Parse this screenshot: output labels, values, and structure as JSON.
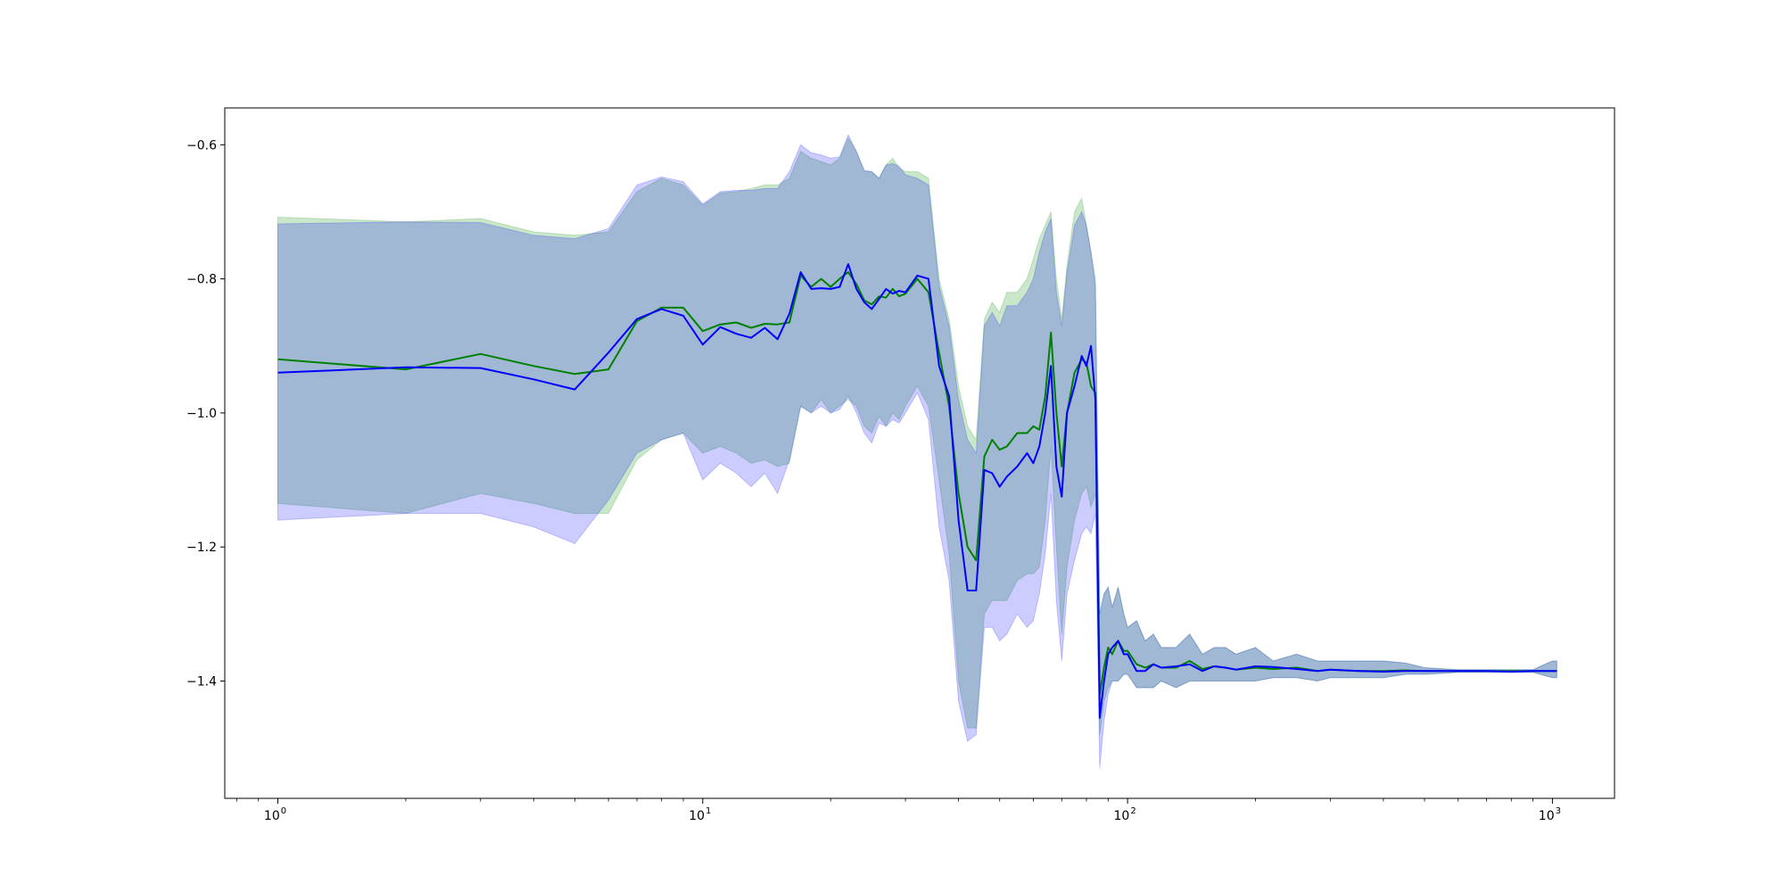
{
  "chart_data": {
    "type": "line",
    "title": "",
    "xlabel": "",
    "ylabel": "",
    "x_scale": "log",
    "xlim": [
      0.75,
      1400
    ],
    "ylim": [
      -1.575,
      -0.545
    ],
    "grid": false,
    "legend": "none",
    "x_ticks": [
      {
        "value": 1,
        "base": "10",
        "exp": "0"
      },
      {
        "value": 10,
        "base": "10",
        "exp": "1"
      },
      {
        "value": 100,
        "base": "10",
        "exp": "2"
      },
      {
        "value": 1000,
        "base": "10",
        "exp": "3"
      }
    ],
    "y_ticks": [
      {
        "value": -0.6,
        "label": "−0.6"
      },
      {
        "value": -0.8,
        "label": "−0.8"
      },
      {
        "value": -1.0,
        "label": "−1.0"
      },
      {
        "value": -1.2,
        "label": "−1.2"
      },
      {
        "value": -1.4,
        "label": "−1.4"
      }
    ],
    "series": [
      {
        "color": "#008000",
        "band_color": "#2ca02c",
        "band_opacity": 0.25,
        "x": [
          1,
          2,
          3,
          4,
          5,
          6,
          7,
          8,
          9,
          10,
          11,
          12,
          13,
          14,
          15,
          16,
          17,
          18,
          19,
          20,
          21,
          22,
          23,
          24,
          25,
          26,
          27,
          28,
          29,
          30,
          32,
          34,
          36,
          38,
          40,
          42,
          44,
          46,
          48,
          50,
          52,
          55,
          58,
          60,
          62,
          64,
          66,
          68,
          70,
          72,
          75,
          78,
          80,
          82,
          84,
          86,
          88,
          90,
          92,
          95,
          98,
          100,
          105,
          110,
          115,
          120,
          130,
          140,
          150,
          160,
          170,
          180,
          200,
          220,
          250,
          280,
          300,
          350,
          400,
          450,
          500,
          600,
          700,
          800,
          900,
          1000,
          1024
        ],
        "mean": [
          -0.92,
          -0.935,
          -0.912,
          -0.93,
          -0.942,
          -0.935,
          -0.863,
          -0.843,
          -0.843,
          -0.878,
          -0.868,
          -0.865,
          -0.873,
          -0.867,
          -0.868,
          -0.865,
          -0.795,
          -0.812,
          -0.8,
          -0.812,
          -0.8,
          -0.79,
          -0.808,
          -0.832,
          -0.838,
          -0.826,
          -0.828,
          -0.815,
          -0.826,
          -0.822,
          -0.8,
          -0.82,
          -0.91,
          -0.99,
          -1.12,
          -1.2,
          -1.22,
          -1.065,
          -1.04,
          -1.055,
          -1.05,
          -1.03,
          -1.03,
          -1.02,
          -1.025,
          -0.975,
          -0.88,
          -1.0,
          -1.08,
          -1.0,
          -0.94,
          -0.92,
          -0.925,
          -0.96,
          -0.97,
          -1.42,
          -1.38,
          -1.35,
          -1.36,
          -1.34,
          -1.355,
          -1.355,
          -1.375,
          -1.38,
          -1.375,
          -1.38,
          -1.38,
          -1.37,
          -1.382,
          -1.378,
          -1.38,
          -1.383,
          -1.38,
          -1.382,
          -1.38,
          -1.385,
          -1.383,
          -1.385,
          -1.385,
          -1.384,
          -1.385,
          -1.385,
          -1.385,
          -1.385,
          -1.385,
          -1.385,
          -1.385
        ],
        "upper": [
          -0.708,
          -0.715,
          -0.71,
          -0.73,
          -0.735,
          -0.73,
          -0.67,
          -0.65,
          -0.66,
          -0.69,
          -0.672,
          -0.67,
          -0.665,
          -0.66,
          -0.66,
          -0.65,
          -0.61,
          -0.62,
          -0.625,
          -0.63,
          -0.62,
          -0.59,
          -0.61,
          -0.64,
          -0.64,
          -0.65,
          -0.63,
          -0.62,
          -0.635,
          -0.64,
          -0.64,
          -0.65,
          -0.8,
          -0.86,
          -0.96,
          -1.02,
          -1.04,
          -0.86,
          -0.835,
          -0.85,
          -0.82,
          -0.82,
          -0.8,
          -0.77,
          -0.74,
          -0.72,
          -0.7,
          -0.8,
          -0.86,
          -0.78,
          -0.7,
          -0.68,
          -0.72,
          -0.76,
          -0.8,
          -1.3,
          -1.27,
          -1.26,
          -1.29,
          -1.26,
          -1.3,
          -1.32,
          -1.31,
          -1.34,
          -1.33,
          -1.35,
          -1.35,
          -1.33,
          -1.36,
          -1.35,
          -1.35,
          -1.36,
          -1.35,
          -1.37,
          -1.36,
          -1.37,
          -1.37,
          -1.37,
          -1.37,
          -1.373,
          -1.38,
          -1.383,
          -1.383,
          -1.383,
          -1.383,
          -1.37,
          -1.37
        ],
        "lower": [
          -1.135,
          -1.15,
          -1.12,
          -1.135,
          -1.15,
          -1.15,
          -1.07,
          -1.04,
          -1.03,
          -1.06,
          -1.05,
          -1.06,
          -1.075,
          -1.07,
          -1.08,
          -1.075,
          -0.99,
          -1.0,
          -0.98,
          -1.0,
          -0.99,
          -0.98,
          -0.99,
          -1.02,
          -1.03,
          -1.005,
          -1.02,
          -1.0,
          -1.01,
          -0.99,
          -0.96,
          -0.99,
          -1.1,
          -1.21,
          -1.4,
          -1.47,
          -1.47,
          -1.3,
          -1.28,
          -1.28,
          -1.28,
          -1.25,
          -1.24,
          -1.24,
          -1.23,
          -1.16,
          -1.05,
          -1.2,
          -1.33,
          -1.23,
          -1.16,
          -1.12,
          -1.11,
          -1.14,
          -1.12,
          -1.48,
          -1.43,
          -1.41,
          -1.4,
          -1.4,
          -1.39,
          -1.39,
          -1.41,
          -1.41,
          -1.41,
          -1.4,
          -1.41,
          -1.4,
          -1.4,
          -1.4,
          -1.4,
          -1.4,
          -1.4,
          -1.395,
          -1.395,
          -1.4,
          -1.395,
          -1.395,
          -1.395,
          -1.39,
          -1.39,
          -1.387,
          -1.387,
          -1.387,
          -1.387,
          -1.395,
          -1.395
        ]
      },
      {
        "color": "#0000ff",
        "band_color": "#0000ff",
        "band_opacity": 0.2,
        "x": [
          1,
          2,
          3,
          4,
          5,
          6,
          7,
          8,
          9,
          10,
          11,
          12,
          13,
          14,
          15,
          16,
          17,
          18,
          19,
          20,
          21,
          22,
          23,
          24,
          25,
          26,
          27,
          28,
          29,
          30,
          32,
          34,
          36,
          38,
          40,
          42,
          44,
          46,
          48,
          50,
          52,
          55,
          58,
          60,
          62,
          64,
          66,
          68,
          70,
          72,
          75,
          78,
          80,
          82,
          84,
          86,
          88,
          90,
          92,
          95,
          98,
          100,
          105,
          110,
          115,
          120,
          130,
          140,
          150,
          160,
          170,
          180,
          200,
          220,
          250,
          280,
          300,
          350,
          400,
          450,
          500,
          600,
          700,
          800,
          900,
          1000,
          1024
        ],
        "mean": [
          -0.94,
          -0.932,
          -0.933,
          -0.95,
          -0.965,
          -0.91,
          -0.86,
          -0.845,
          -0.855,
          -0.898,
          -0.872,
          -0.882,
          -0.888,
          -0.873,
          -0.89,
          -0.852,
          -0.79,
          -0.815,
          -0.814,
          -0.815,
          -0.812,
          -0.778,
          -0.815,
          -0.835,
          -0.845,
          -0.83,
          -0.815,
          -0.822,
          -0.818,
          -0.82,
          -0.795,
          -0.8,
          -0.93,
          -0.975,
          -1.16,
          -1.265,
          -1.265,
          -1.085,
          -1.09,
          -1.11,
          -1.095,
          -1.08,
          -1.06,
          -1.075,
          -1.05,
          -1.0,
          -0.93,
          -1.08,
          -1.125,
          -1.0,
          -0.96,
          -0.915,
          -0.93,
          -0.9,
          -0.98,
          -1.455,
          -1.4,
          -1.36,
          -1.35,
          -1.34,
          -1.36,
          -1.36,
          -1.385,
          -1.385,
          -1.375,
          -1.38,
          -1.378,
          -1.375,
          -1.385,
          -1.378,
          -1.38,
          -1.383,
          -1.378,
          -1.379,
          -1.382,
          -1.385,
          -1.383,
          -1.385,
          -1.386,
          -1.385,
          -1.385,
          -1.385,
          -1.385,
          -1.386,
          -1.385,
          -1.385,
          -1.385
        ],
        "upper": [
          -0.718,
          -0.715,
          -0.716,
          -0.735,
          -0.74,
          -0.725,
          -0.66,
          -0.648,
          -0.655,
          -0.688,
          -0.67,
          -0.668,
          -0.668,
          -0.665,
          -0.665,
          -0.64,
          -0.6,
          -0.612,
          -0.615,
          -0.62,
          -0.618,
          -0.585,
          -0.61,
          -0.638,
          -0.64,
          -0.65,
          -0.63,
          -0.628,
          -0.632,
          -0.645,
          -0.65,
          -0.66,
          -0.81,
          -0.87,
          -0.98,
          -1.04,
          -1.06,
          -0.87,
          -0.85,
          -0.87,
          -0.84,
          -0.84,
          -0.82,
          -0.8,
          -0.76,
          -0.73,
          -0.71,
          -0.82,
          -0.87,
          -0.79,
          -0.72,
          -0.7,
          -0.72,
          -0.76,
          -0.81,
          -1.3,
          -1.27,
          -1.26,
          -1.29,
          -1.26,
          -1.3,
          -1.32,
          -1.31,
          -1.34,
          -1.33,
          -1.35,
          -1.35,
          -1.33,
          -1.36,
          -1.35,
          -1.35,
          -1.36,
          -1.35,
          -1.37,
          -1.36,
          -1.37,
          -1.37,
          -1.37,
          -1.37,
          -1.373,
          -1.38,
          -1.383,
          -1.383,
          -1.383,
          -1.383,
          -1.37,
          -1.37
        ],
        "lower": [
          -1.16,
          -1.15,
          -1.15,
          -1.17,
          -1.195,
          -1.13,
          -1.06,
          -1.04,
          -1.03,
          -1.1,
          -1.075,
          -1.09,
          -1.11,
          -1.09,
          -1.12,
          -1.07,
          -0.99,
          -1.0,
          -0.99,
          -1.0,
          -0.995,
          -0.975,
          -1.0,
          -1.03,
          -1.045,
          -1.015,
          -1.02,
          -1.01,
          -1.015,
          -1.0,
          -0.97,
          -1.01,
          -1.17,
          -1.25,
          -1.43,
          -1.49,
          -1.48,
          -1.32,
          -1.32,
          -1.34,
          -1.33,
          -1.3,
          -1.32,
          -1.31,
          -1.27,
          -1.21,
          -1.12,
          -1.28,
          -1.37,
          -1.27,
          -1.22,
          -1.18,
          -1.17,
          -1.18,
          -1.15,
          -1.53,
          -1.46,
          -1.42,
          -1.4,
          -1.4,
          -1.39,
          -1.39,
          -1.41,
          -1.41,
          -1.41,
          -1.4,
          -1.41,
          -1.4,
          -1.4,
          -1.4,
          -1.4,
          -1.4,
          -1.4,
          -1.395,
          -1.395,
          -1.4,
          -1.395,
          -1.395,
          -1.395,
          -1.39,
          -1.39,
          -1.387,
          -1.387,
          -1.387,
          -1.387,
          -1.395,
          -1.395
        ]
      }
    ]
  }
}
